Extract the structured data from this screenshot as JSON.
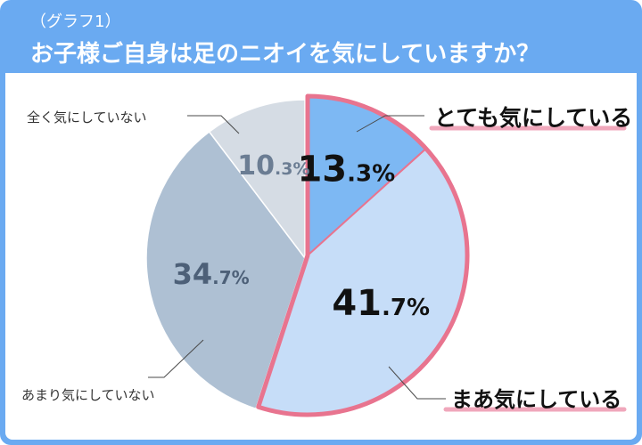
{
  "header": {
    "subtitle": "（グラフ1）",
    "title": "お子様ご自身は足のニオイを気にしていますか？"
  },
  "colors": {
    "frame": "#6aaaf1",
    "highlight_border": "#e8748f",
    "underline": "#f0a7bb"
  },
  "chart_data": {
    "type": "pie",
    "title": "",
    "slices": [
      {
        "label": "とても気にしている",
        "value": 13.3,
        "color": "#7db8f3",
        "int": "13",
        "dec": ".3%",
        "highlight": true
      },
      {
        "label": "まあ気にしている",
        "value": 41.7,
        "color": "#c6ddf8",
        "int": "41",
        "dec": ".7%",
        "highlight": true
      },
      {
        "label": "あまり気にしていない",
        "value": 34.7,
        "color": "#aec0d3",
        "int": "34",
        "dec": ".7%",
        "highlight": false
      },
      {
        "label": "全く気にしていない",
        "value": 10.3,
        "color": "#d5dce4",
        "int": "10",
        "dec": ".3%",
        "highlight": false
      }
    ]
  }
}
